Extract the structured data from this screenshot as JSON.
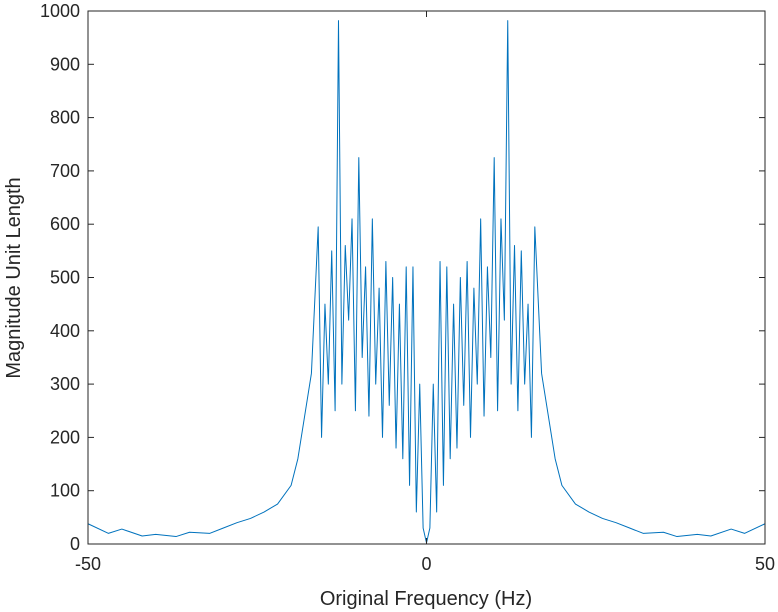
{
  "chart_data": {
    "type": "line",
    "title": "",
    "xlabel": "Original Frequency (Hz)",
    "ylabel": "Magnitude Unit Length",
    "xlim": [
      -50,
      50
    ],
    "ylim": [
      0,
      1000
    ],
    "x_ticks": [
      -50,
      0,
      50
    ],
    "y_ticks": [
      0,
      100,
      200,
      300,
      400,
      500,
      600,
      700,
      800,
      900,
      1000
    ],
    "grid": false,
    "legend": "none",
    "series_color": "#0072BD",
    "series": [
      {
        "x": [
          -50,
          -47,
          -45,
          -42,
          -40,
          -37,
          -35,
          -32,
          -30,
          -28,
          -26,
          -24,
          -22,
          -20,
          -19,
          -18,
          -17,
          -16,
          -15.5,
          -15,
          -14.5,
          -14,
          -13.5,
          -13,
          -12.5,
          -12,
          -11.5,
          -11,
          -10.5,
          -10,
          -9.5,
          -9,
          -8.5,
          -8,
          -7.5,
          -7,
          -6.5,
          -6,
          -5.5,
          -5,
          -4.5,
          -4,
          -3.5,
          -3,
          -2.5,
          -2,
          -1.5,
          -1,
          -0.5,
          0,
          0.5,
          1,
          1.5,
          2,
          2.5,
          3,
          3.5,
          4,
          4.5,
          5,
          5.5,
          6,
          6.5,
          7,
          7.5,
          8,
          8.5,
          9,
          9.5,
          10,
          10.5,
          11,
          11.5,
          12,
          12.5,
          13,
          13.5,
          14,
          14.5,
          15,
          15.5,
          16,
          17,
          18,
          19,
          20,
          22,
          24,
          26,
          28,
          30,
          32,
          35,
          37,
          40,
          42,
          45,
          47,
          50
        ],
        "y": [
          38,
          20,
          28,
          15,
          18,
          14,
          22,
          20,
          30,
          40,
          48,
          60,
          75,
          110,
          160,
          240,
          320,
          595,
          200,
          450,
          300,
          550,
          250,
          982,
          300,
          560,
          420,
          610,
          250,
          725,
          350,
          520,
          240,
          610,
          300,
          480,
          200,
          530,
          260,
          500,
          180,
          450,
          160,
          520,
          110,
          520,
          60,
          300,
          30,
          2,
          30,
          300,
          60,
          530,
          110,
          520,
          160,
          450,
          180,
          500,
          260,
          530,
          200,
          480,
          300,
          610,
          240,
          520,
          350,
          725,
          250,
          610,
          420,
          982,
          300,
          560,
          250,
          550,
          300,
          450,
          200,
          595,
          320,
          240,
          160,
          110,
          75,
          60,
          48,
          40,
          30,
          20,
          22,
          14,
          18,
          15,
          28,
          20,
          38
        ]
      }
    ]
  }
}
